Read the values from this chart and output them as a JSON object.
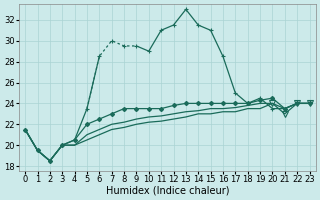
{
  "xlabel": "Humidex (Indice chaleur)",
  "background_color": "#cceaea",
  "grid_color": "#aad4d4",
  "line_color": "#1a6b5a",
  "ylim": [
    17.5,
    33.5
  ],
  "xlim": [
    -0.5,
    23.5
  ],
  "yticks": [
    18,
    20,
    22,
    24,
    26,
    28,
    30,
    32
  ],
  "xticks": [
    0,
    1,
    2,
    3,
    4,
    5,
    6,
    7,
    8,
    9,
    10,
    11,
    12,
    13,
    14,
    15,
    16,
    17,
    18,
    19,
    20,
    21,
    22,
    23
  ],
  "xtick_labels": [
    "0",
    "1",
    "2",
    "3",
    "4",
    "5",
    "6",
    "7",
    "8",
    "9",
    "10",
    "11",
    "12",
    "13",
    "14",
    "15",
    "16",
    "17",
    "18",
    "19",
    "20",
    "21",
    "22",
    "23"
  ],
  "series1_x": [
    0,
    1,
    2,
    3,
    4,
    5,
    6,
    7,
    8,
    9,
    10,
    11,
    12,
    13,
    14,
    15,
    16,
    17,
    18,
    19,
    20,
    21,
    22,
    23
  ],
  "series1_y": [
    21.5,
    19.5,
    18.5,
    20.0,
    20.5,
    23.5,
    28.5,
    30.0,
    29.5,
    29.5,
    29.0,
    31.0,
    31.5,
    33.0,
    31.5,
    31.0,
    28.5,
    25.0,
    24.0,
    24.5,
    23.5,
    23.5,
    24.0,
    24.0
  ],
  "series1_solid1_end": 6,
  "series1_dotted_start": 5,
  "series1_dotted_end": 9,
  "series1_solid2_start": 8,
  "series2_x": [
    0,
    1,
    2,
    3,
    4,
    5,
    6,
    7,
    8,
    9,
    10,
    11,
    12,
    13,
    14,
    15,
    16,
    17,
    18,
    19,
    20,
    21,
    22,
    23
  ],
  "series2_y": [
    21.5,
    19.5,
    18.5,
    20.0,
    20.5,
    22.0,
    22.5,
    23.0,
    23.5,
    23.5,
    23.5,
    23.5,
    23.8,
    24.0,
    24.0,
    24.0,
    24.0,
    24.0,
    24.0,
    24.3,
    24.5,
    23.5,
    24.0,
    24.0
  ],
  "series3_x": [
    0,
    1,
    2,
    3,
    4,
    5,
    6,
    7,
    8,
    9,
    10,
    11,
    12,
    13,
    14,
    15,
    16,
    17,
    18,
    19,
    20,
    21,
    22,
    23
  ],
  "series3_y": [
    21.5,
    19.5,
    18.5,
    20.0,
    20.0,
    21.0,
    21.5,
    22.0,
    22.2,
    22.5,
    22.7,
    22.8,
    23.0,
    23.2,
    23.3,
    23.5,
    23.5,
    23.6,
    23.8,
    24.0,
    24.0,
    23.5,
    24.0,
    24.0
  ],
  "series4_x": [
    0,
    1,
    2,
    3,
    4,
    5,
    6,
    7,
    8,
    9,
    10,
    11,
    12,
    13,
    14,
    15,
    16,
    17,
    18,
    19,
    20,
    21,
    22,
    23
  ],
  "series4_y": [
    21.5,
    19.5,
    18.5,
    20.0,
    20.0,
    20.5,
    21.0,
    21.5,
    21.7,
    22.0,
    22.2,
    22.3,
    22.5,
    22.7,
    23.0,
    23.0,
    23.2,
    23.2,
    23.5,
    23.5,
    24.0,
    23.0,
    24.0,
    24.0
  ],
  "fontsize_label": 7,
  "fontsize_tick": 6
}
